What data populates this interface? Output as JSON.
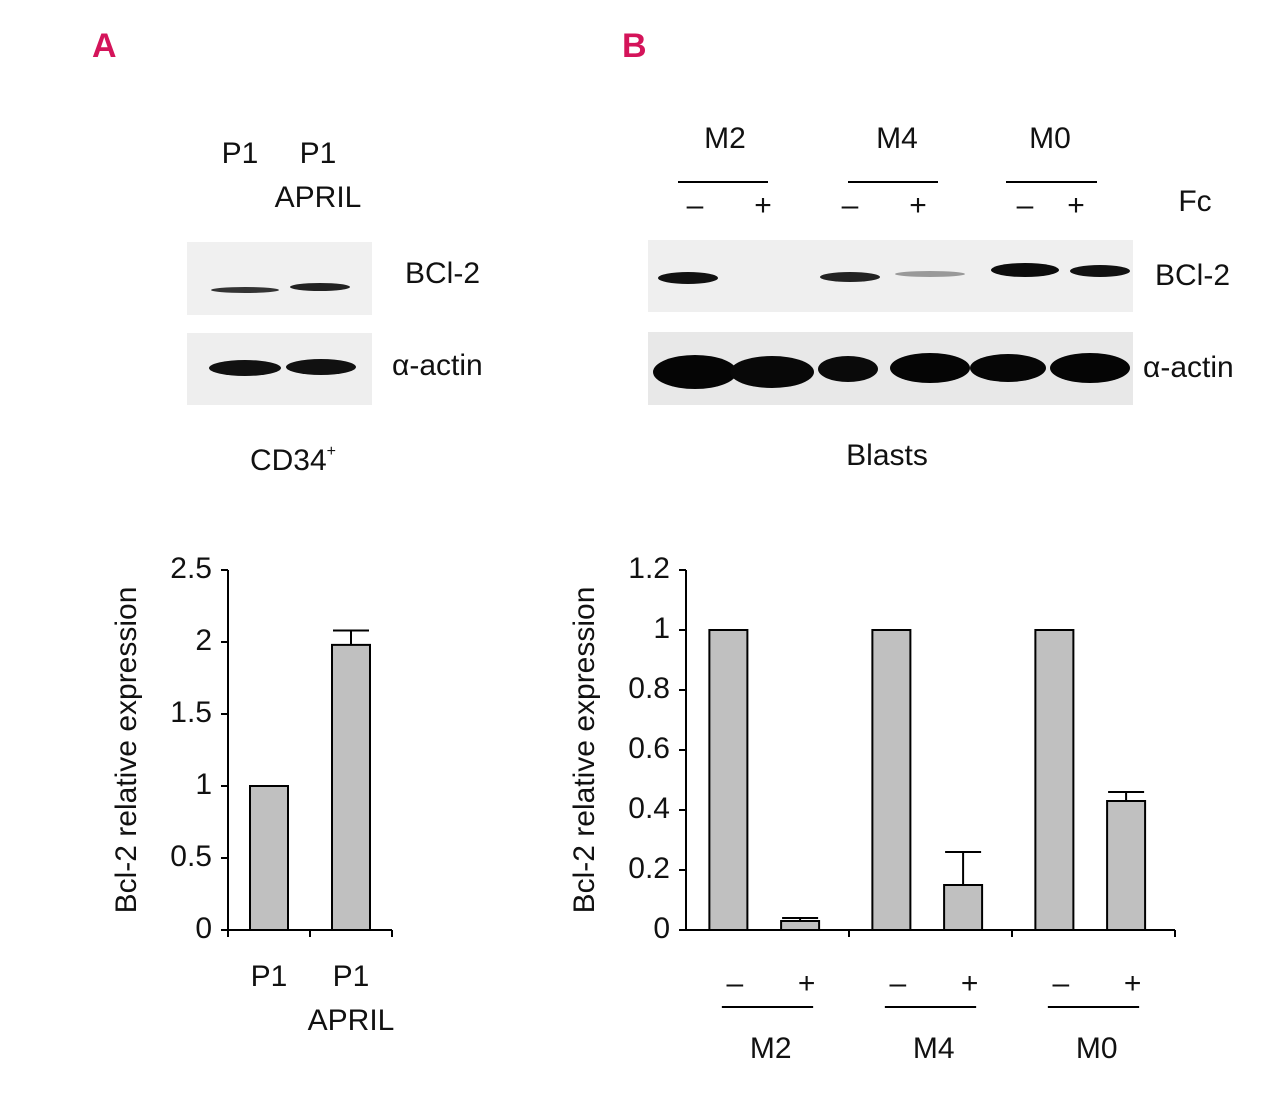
{
  "panel_labels": [
    "A",
    "B"
  ],
  "blots": [
    {
      "lanes": [
        [
          "P1"
        ],
        [
          "P1",
          "APRIL"
        ]
      ],
      "bands": [
        "BCl-2",
        "α-actin"
      ],
      "caption": {
        "text": "CD34",
        "superscript": "+"
      }
    },
    {
      "groups": [
        "M2",
        "M4",
        "M0"
      ],
      "signs": [
        "–",
        "+",
        "–",
        "+",
        "–",
        "+"
      ],
      "treatment": "Fc",
      "bands": [
        "BCl-2",
        "α-actin"
      ],
      "caption": {
        "text": "Blasts"
      }
    }
  ],
  "chart_data": [
    {
      "type": "bar",
      "ylabel": "Bcl-2 relative expression",
      "categories": [
        [
          "P1"
        ],
        [
          "P1",
          "APRIL"
        ]
      ],
      "values": [
        1,
        1.98
      ],
      "errors": [
        null,
        0.1
      ],
      "color": "#c0c0c0",
      "ylim": [
        0,
        2.5
      ],
      "yticks": [
        0,
        0.5,
        1,
        1.5,
        2,
        2.5
      ]
    },
    {
      "type": "bar",
      "ylabel": "Bcl-2 relative expression",
      "categories": [
        "–",
        "+",
        "–",
        "+",
        "–",
        "+"
      ],
      "groups": [
        "M2",
        "M4",
        "M0"
      ],
      "values": [
        1,
        0.03,
        1,
        0.15,
        1,
        0.43
      ],
      "errors": [
        null,
        0.01,
        null,
        0.11,
        null,
        0.03
      ],
      "color": "#c0c0c0",
      "ylim": [
        0,
        1.2
      ],
      "yticks": [
        0,
        0.2,
        0.4,
        0.6,
        0.8,
        1,
        1.2
      ]
    }
  ]
}
